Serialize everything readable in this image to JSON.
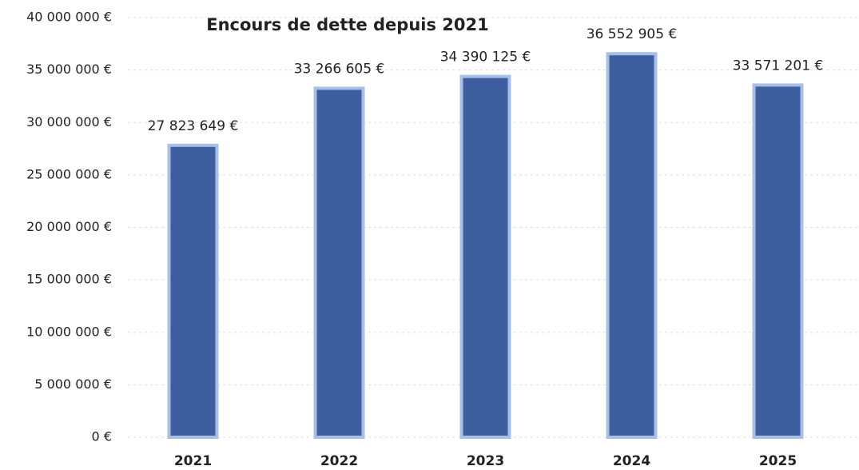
{
  "chart_data": {
    "type": "bar",
    "title": "Encours de dette depuis 2021",
    "categories": [
      "2021",
      "2022",
      "2023",
      "2024",
      "2025"
    ],
    "values": [
      27823649,
      33266605,
      34390125,
      36552905,
      33571201
    ],
    "value_labels": [
      "27 823 649 €",
      "33 266 605 €",
      "34 390 125 €",
      "36 552 905 €",
      "33 571 201 €"
    ],
    "color": "#3d5f9f",
    "ylim": [
      0,
      40000000
    ],
    "yticks": [
      {
        "value": 0,
        "label": "0 €"
      },
      {
        "value": 5000000,
        "label": "5 000 000 €"
      },
      {
        "value": 10000000,
        "label": "10 000 000 €"
      },
      {
        "value": 15000000,
        "label": "15 000 000 €"
      },
      {
        "value": 20000000,
        "label": "20 000 000 €"
      },
      {
        "value": 25000000,
        "label": "25 000 000 €"
      },
      {
        "value": 30000000,
        "label": "30 000 000 €"
      },
      {
        "value": 35000000,
        "label": "35 000 000 €"
      },
      {
        "value": 40000000,
        "label": "40 000 000 €"
      }
    ],
    "grid": true
  }
}
